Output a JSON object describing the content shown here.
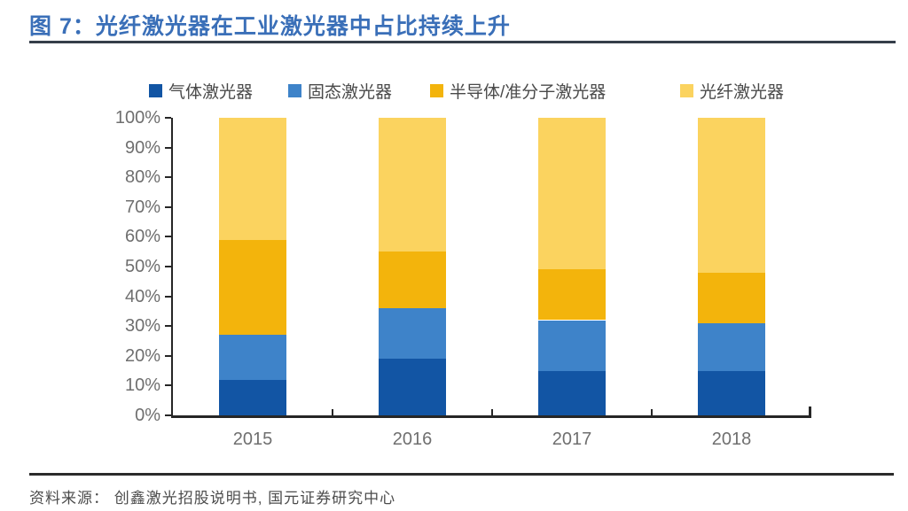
{
  "figure": {
    "source": "资料来源： 创鑫激光招股说明书, 国元证券研究中心"
  },
  "colors": {
    "title_blue": "#3A6FB8",
    "title_rule": "#353E49",
    "axis": "#262626",
    "tick_label_gray": "#6F6F6F",
    "legend_text_gray": "#4A4A4A",
    "source_text_gray": "#4C4C4C",
    "divider_dark": "#2B2B2B"
  },
  "chart_data": {
    "type": "bar",
    "stacked": true,
    "title": "图 7：光纤激光器在工业激光器中占比持续上升",
    "categories": [
      "2015",
      "2016",
      "2017",
      "2018"
    ],
    "series": [
      {
        "name": "气体激光器",
        "color": "#1255A4",
        "values": [
          12,
          19,
          15,
          15
        ]
      },
      {
        "name": "固态激光器",
        "color": "#3E83C9",
        "values": [
          15,
          17,
          17,
          16
        ]
      },
      {
        "name": "半导体/准分子激光器",
        "color": "#F3B40C",
        "values": [
          32,
          19,
          17,
          17
        ]
      },
      {
        "name": "光纤激光器",
        "color": "#FBD35F",
        "values": [
          41,
          45,
          51,
          52
        ]
      }
    ],
    "unit": "%",
    "ylim": [
      0,
      100
    ],
    "ytick_step": 10,
    "ytick_labels": [
      "0%",
      "10%",
      "20%",
      "30%",
      "40%",
      "50%",
      "60%",
      "70%",
      "80%",
      "90%",
      "100%"
    ],
    "xlabel": "",
    "ylabel": "",
    "grid": false,
    "legend_position": "top"
  }
}
